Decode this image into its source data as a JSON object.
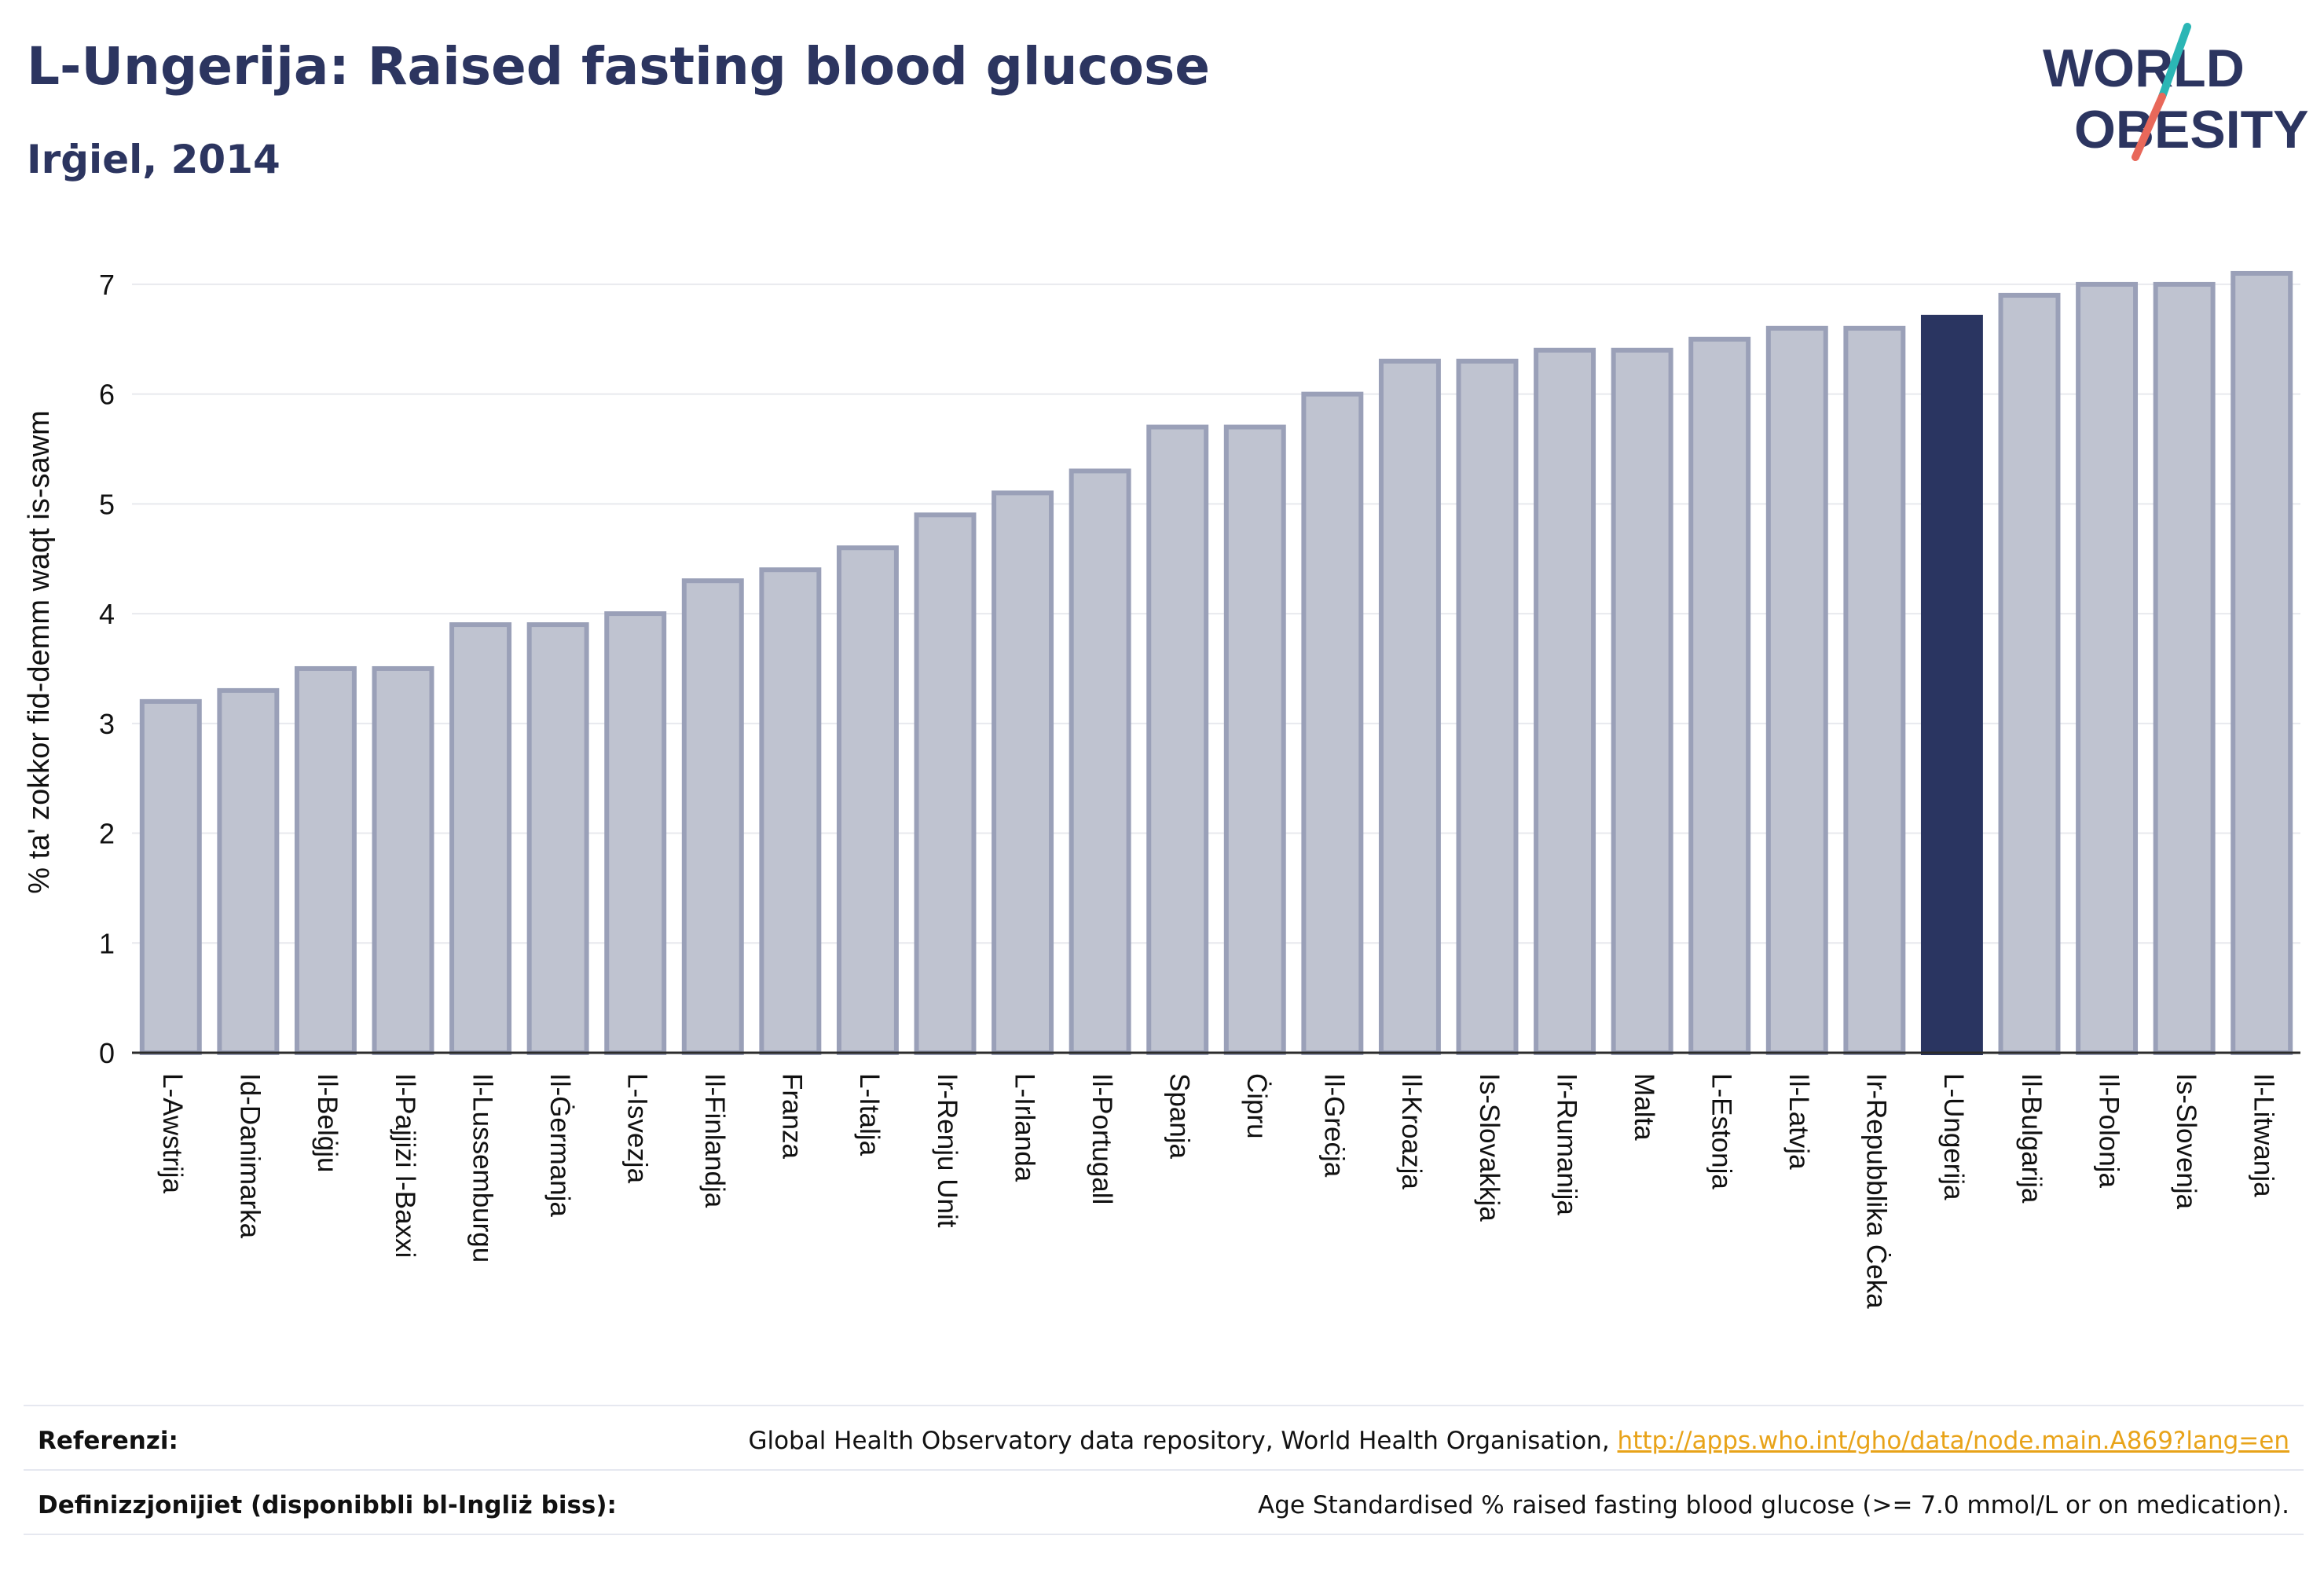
{
  "header": {
    "title": "L-Ungerija: Raised fasting blood glucose",
    "subtitle": "Irġiel, 2014"
  },
  "logo": {
    "line1": "WORLD",
    "line2": "OBESITY",
    "slash_color_top": "#2bb6b5",
    "slash_color_bottom": "#e8685a"
  },
  "colors": {
    "bar_default": "#bfc3d0",
    "bar_default_stroke": "#9aa0b8",
    "bar_highlight": "#2a3561",
    "grid": "#e8e9ee",
    "axis": "#2b2b2b",
    "text": "#111111"
  },
  "chart_data": {
    "type": "bar",
    "ylabel": "% ta' zokkor fid-demm waqt is-sawm",
    "ylim": [
      0,
      7.3
    ],
    "yticks": [
      0,
      1,
      2,
      3,
      4,
      5,
      6,
      7
    ],
    "grid": true,
    "categories": [
      "L-Awstrija",
      "Id-Danimarka",
      "Il-Belġju",
      "Il-Pajjiżi l-Baxxi",
      "Il-Lussemburgu",
      "Il-Ġermanja",
      "L-Isvezja",
      "Il-Finlandja",
      "Franza",
      "L-Italja",
      "Ir-Renju Unit",
      "L-Irlanda",
      "Il-Portugall",
      "Spanja",
      "Ċipru",
      "Il-Greċja",
      "Il-Kroazja",
      "Is-Slovakkja",
      "Ir-Rumanija",
      "Malta",
      "L-Estonja",
      "Il-Latvja",
      "Ir-Repubblika Ċeka",
      "L-Ungerija",
      "Il-Bulgarija",
      "Il-Polonja",
      "Is-Slovenja",
      "Il-Litwanja"
    ],
    "values": [
      3.2,
      3.3,
      3.5,
      3.5,
      3.9,
      3.9,
      4.0,
      4.3,
      4.4,
      4.6,
      4.9,
      5.1,
      5.3,
      5.7,
      5.7,
      6.0,
      6.3,
      6.3,
      6.4,
      6.4,
      6.5,
      6.6,
      6.6,
      6.7,
      6.9,
      7.0,
      7.0,
      7.1
    ],
    "highlight": "L-Ungerija"
  },
  "footer": {
    "sources_label": "Referenzi:",
    "sources_text": "Global Health Observatory data repository, World Health Organisation, ",
    "sources_link": "http://apps.who.int/gho/data/node.main.A869?lang=en",
    "definition_label": "Definizzjonijiet (disponibbli bl-Ingliż biss):",
    "definition_text": "Age Standardised % raised fasting blood glucose (>= 7.0 mmol/L or on medication)."
  }
}
